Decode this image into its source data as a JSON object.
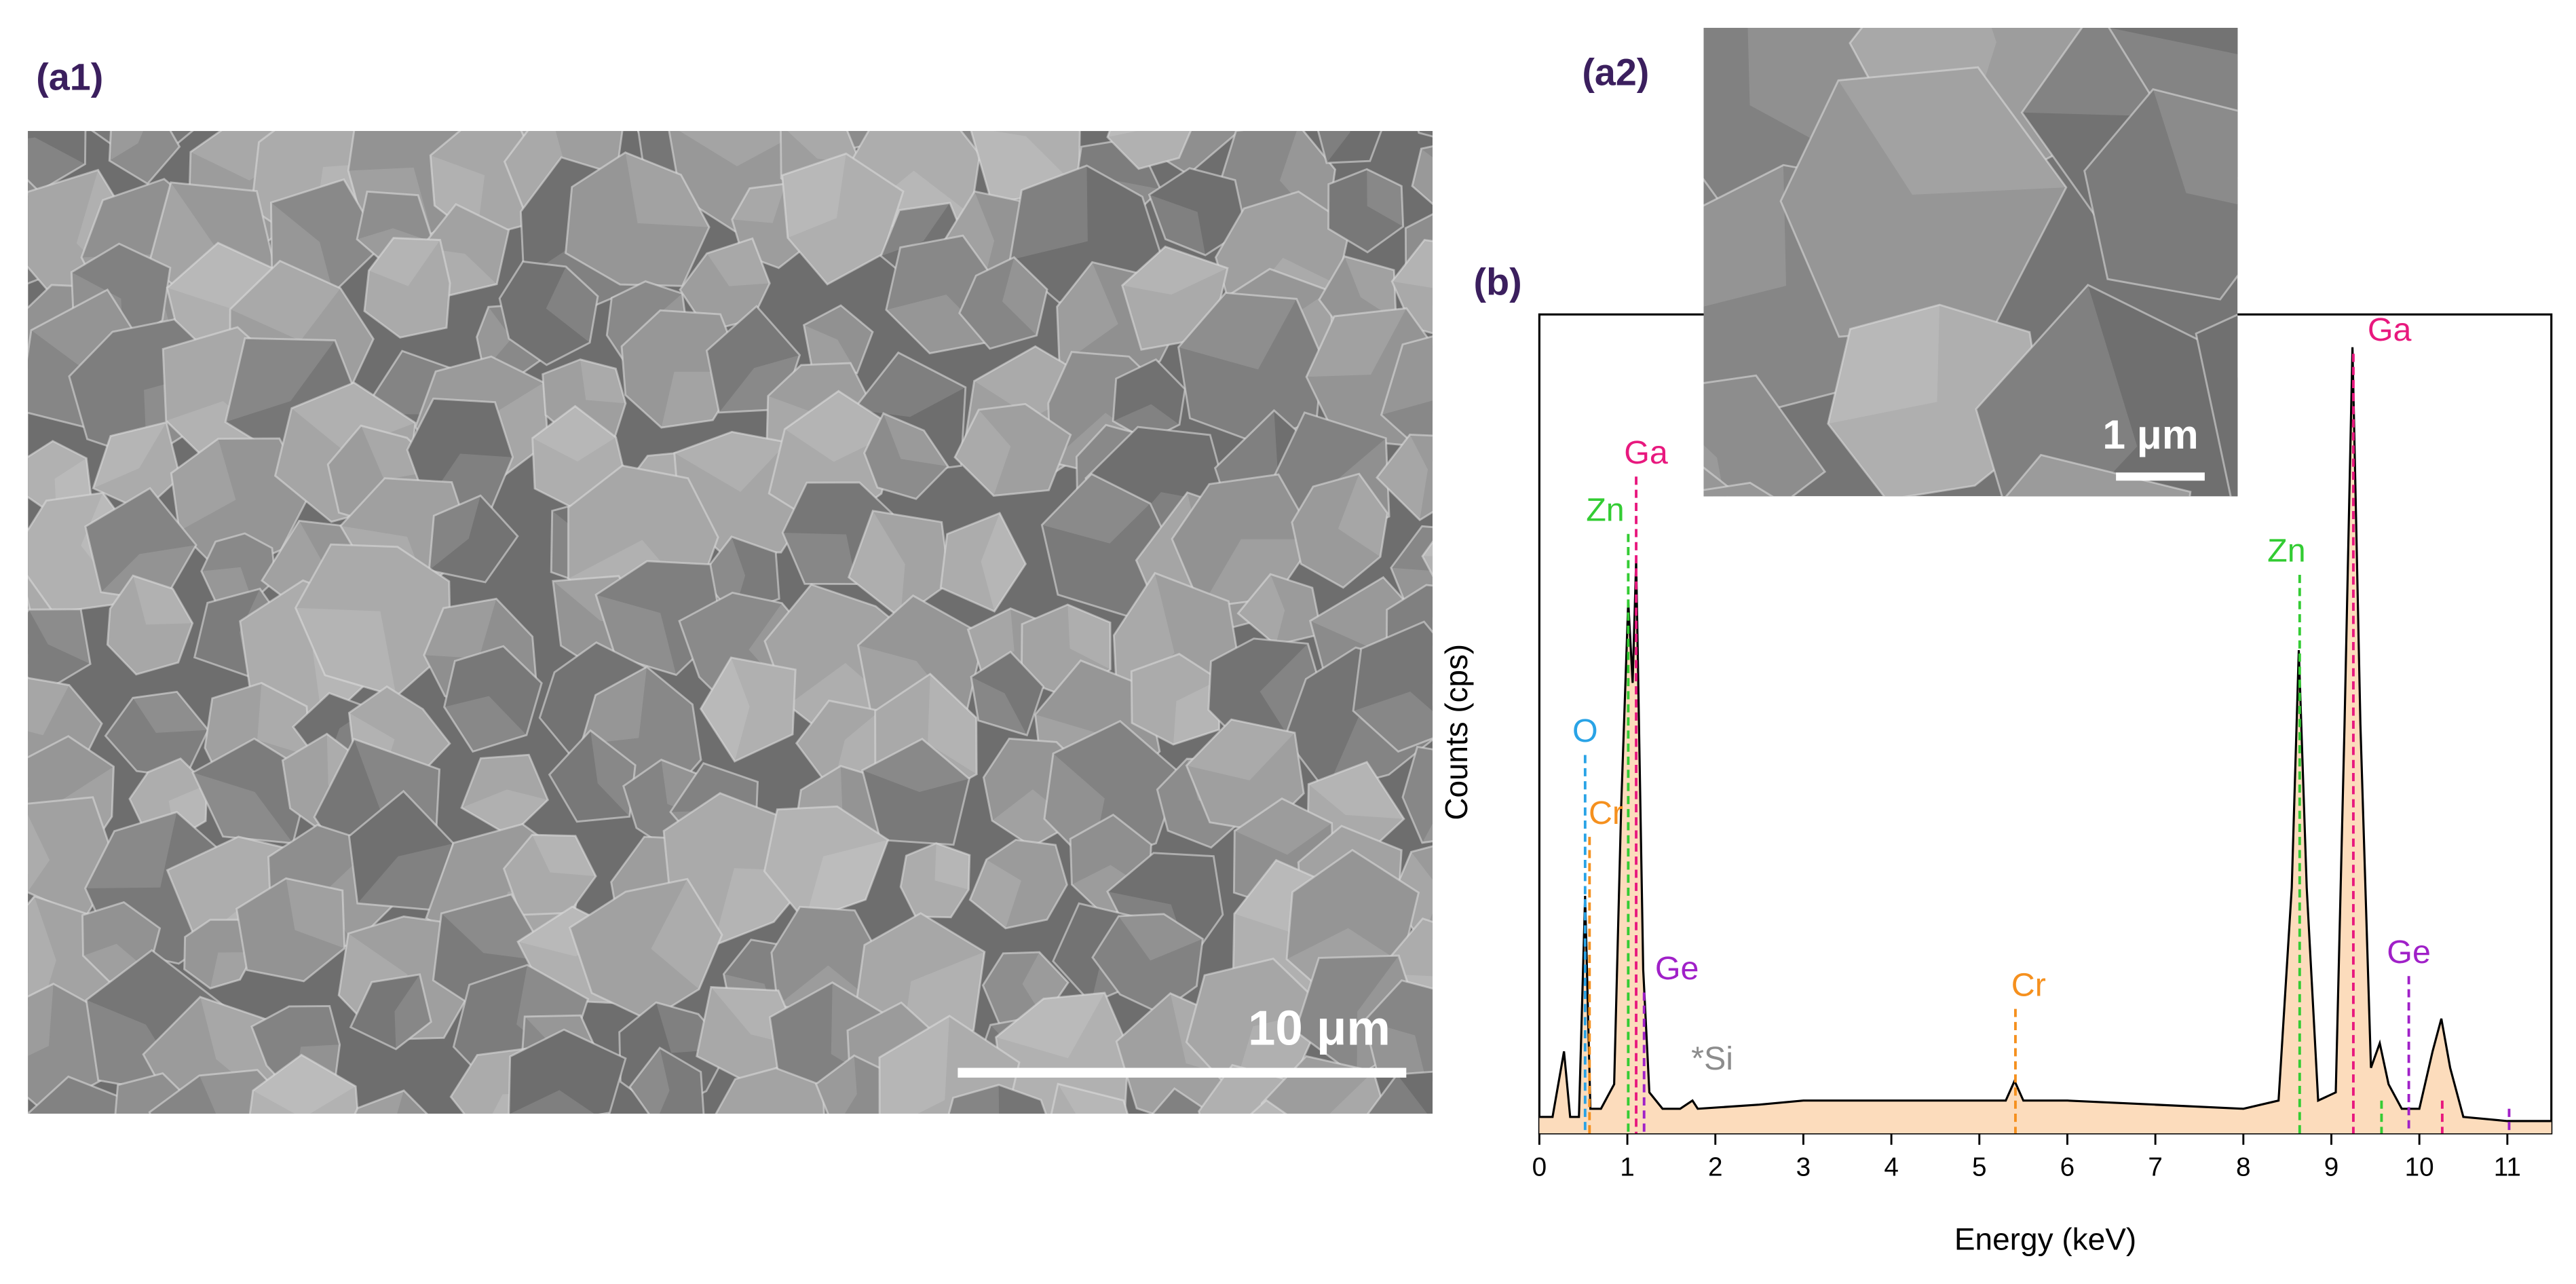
{
  "figure": {
    "panel_a1": {
      "label": "(a1)",
      "scale_bar": "10 μm"
    },
    "panel_a2": {
      "label": "(a2)",
      "scale_bar": "1 μm"
    }
  },
  "chart_data": {
    "type": "line",
    "panel_label": "(b)",
    "xlabel": "Energy (keV)",
    "ylabel": "Counts (cps)",
    "xlim": [
      0,
      11.5
    ],
    "xticks": [
      0,
      1,
      2,
      3,
      4,
      5,
      6,
      7,
      8,
      9,
      10,
      11
    ],
    "ylim": [
      0,
      100
    ],
    "color": "#000000",
    "fill_color": "#fcdcbc",
    "x": [
      0,
      0.15,
      0.28,
      0.35,
      0.45,
      0.52,
      0.58,
      0.7,
      0.85,
      0.93,
      1.01,
      1.06,
      1.1,
      1.18,
      1.25,
      1.4,
      1.6,
      1.74,
      1.8,
      2.5,
      3,
      4,
      5,
      5.3,
      5.4,
      5.5,
      6,
      7,
      8,
      8.4,
      8.55,
      8.63,
      8.72,
      8.85,
      9.05,
      9.15,
      9.24,
      9.33,
      9.45,
      9.55,
      9.65,
      9.8,
      10,
      10.15,
      10.25,
      10.35,
      10.5,
      11,
      11.5
    ],
    "values": [
      2,
      2,
      10,
      2,
      2,
      29,
      3,
      3,
      6,
      40,
      65,
      55,
      70,
      20,
      5,
      3,
      3,
      4,
      3,
      3.5,
      4,
      4,
      4,
      4,
      6.4,
      4,
      4,
      3.5,
      3,
      4,
      30,
      59,
      30,
      4,
      5,
      50,
      96,
      50,
      8,
      11,
      6,
      3,
      3,
      10,
      14,
      8,
      2,
      1.5,
      1.5
    ],
    "annotations": [
      {
        "label": "O",
        "x": 0.52,
        "color": "#29a3e6"
      },
      {
        "label": "Cr",
        "x": 0.57,
        "color": "#f5901e"
      },
      {
        "label": "Zn",
        "x": 1.01,
        "color": "#33cc33"
      },
      {
        "label": "Ga",
        "x": 1.1,
        "color": "#e8187e"
      },
      {
        "label": "Ge",
        "x": 1.19,
        "color": "#a020c8"
      },
      {
        "label": "*Si",
        "x": 1.74,
        "color": "#8c8c8c"
      },
      {
        "label": "Cr",
        "x": 5.41,
        "color": "#f5901e"
      },
      {
        "label": "Zn",
        "x": 8.64,
        "color": "#33cc33"
      },
      {
        "label": "Ga",
        "x": 9.25,
        "color": "#e8187e"
      },
      {
        "label": "Ge",
        "x": 9.88,
        "color": "#a020c8"
      }
    ],
    "markers": [
      {
        "x": 9.57,
        "color": "#33cc33"
      },
      {
        "x": 10.26,
        "color": "#e8187e"
      },
      {
        "x": 11.02,
        "color": "#a020c8"
      }
    ]
  }
}
